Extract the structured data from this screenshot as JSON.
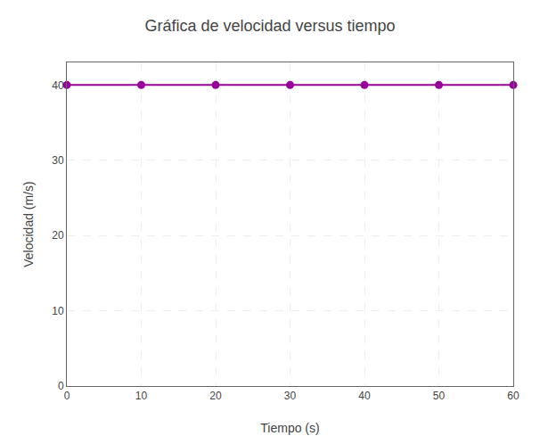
{
  "chart_data": {
    "type": "line",
    "title": "Gráfica de velocidad versus tiempo",
    "xlabel": "Tiempo (s)",
    "ylabel": "Velocidad (m/s)",
    "x": [
      0,
      10,
      20,
      30,
      40,
      50,
      60
    ],
    "values": [
      40,
      40,
      40,
      40,
      40,
      40,
      40
    ],
    "color": "#990099",
    "marker": "circle",
    "xlim": [
      0,
      60
    ],
    "ylim": [
      0,
      43
    ],
    "xticks": [
      0,
      10,
      20,
      30,
      40,
      50,
      60
    ],
    "yticks": [
      0,
      10,
      20,
      30,
      40
    ],
    "grid": true
  }
}
